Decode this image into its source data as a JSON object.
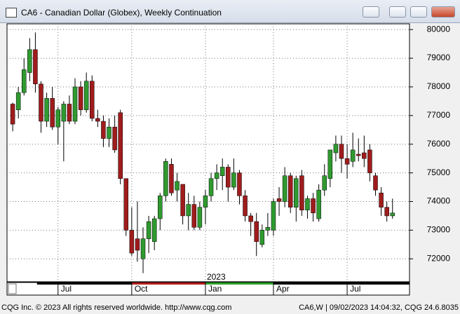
{
  "window": {
    "title": "CA6 - Canadian Dollar (Globex), Weekly Continuation"
  },
  "footer": {
    "left": "CQG Inc. © 2023 All rights reserved worldwide. http://www.cqg.com",
    "right": "CA6,W | 09/02/2023 14:04:32, CQG 24.6.8035"
  },
  "chart_data": {
    "type": "candlestick",
    "up_color": "#2f9a2f",
    "down_color": "#a01c1c",
    "ylim": [
      71200,
      80200
    ],
    "yticks": [
      72000,
      73000,
      74000,
      75000,
      76000,
      77000,
      78000,
      79000,
      80000
    ],
    "xlim": [
      -1,
      70
    ],
    "xticks": [
      {
        "value": 8,
        "label": "Jul"
      },
      {
        "value": 21,
        "label": "Oct"
      },
      {
        "value": 34,
        "label": "Jan"
      },
      {
        "value": 46,
        "label": "Apr"
      },
      {
        "value": 59,
        "label": "Jul"
      }
    ],
    "year_label": "2023",
    "grid": true,
    "ohlc": [
      [
        77400,
        77450,
        76450,
        76700
      ],
      [
        77200,
        78000,
        76900,
        77800
      ],
      [
        77800,
        79000,
        77700,
        78600
      ],
      [
        78500,
        79700,
        78200,
        79300
      ],
      [
        79300,
        79900,
        77800,
        78100
      ],
      [
        78100,
        78200,
        76400,
        76800
      ],
      [
        76800,
        77800,
        76600,
        77600
      ],
      [
        77600,
        78000,
        76500,
        76600
      ],
      [
        76600,
        77300,
        76000,
        77200
      ],
      [
        76800,
        77500,
        75400,
        77400
      ],
      [
        77400,
        77700,
        76700,
        76800
      ],
      [
        76800,
        78300,
        76700,
        78000
      ],
      [
        78000,
        78200,
        77000,
        77200
      ],
      [
        77200,
        78500,
        77100,
        78200
      ],
      [
        78200,
        78400,
        76800,
        76900
      ],
      [
        76900,
        77200,
        76600,
        76800
      ],
      [
        76800,
        77000,
        75900,
        76200
      ],
      [
        76200,
        76900,
        75900,
        76600
      ],
      [
        76600,
        77000,
        75700,
        75800
      ],
      [
        77100,
        77200,
        74600,
        74800
      ],
      [
        74800,
        74800,
        72800,
        73000
      ],
      [
        73000,
        73800,
        72100,
        72200
      ],
      [
        72700,
        74000,
        71900,
        72300
      ],
      [
        72000,
        73100,
        71500,
        72700
      ],
      [
        72700,
        73500,
        72200,
        73300
      ],
      [
        72600,
        73500,
        72300,
        73400
      ],
      [
        73400,
        74300,
        73000,
        74200
      ],
      [
        74200,
        75500,
        74000,
        75400
      ],
      [
        75300,
        75500,
        74200,
        74300
      ],
      [
        74400,
        75000,
        74000,
        74700
      ],
      [
        74600,
        74600,
        73200,
        73500
      ],
      [
        73500,
        74300,
        73000,
        73900
      ],
      [
        73900,
        74200,
        73000,
        73100
      ],
      [
        73100,
        74000,
        73000,
        73800
      ],
      [
        73800,
        74400,
        73200,
        74200
      ],
      [
        74200,
        75000,
        74000,
        74800
      ],
      [
        74800,
        75300,
        74400,
        75000
      ],
      [
        74900,
        75500,
        74400,
        75200
      ],
      [
        75200,
        75300,
        74000,
        74500
      ],
      [
        74500,
        75500,
        74400,
        75000
      ],
      [
        75000,
        75100,
        73900,
        74200
      ],
      [
        74200,
        74400,
        73300,
        73500
      ],
      [
        73500,
        73600,
        72800,
        73300
      ],
      [
        73300,
        73600,
        72100,
        72600
      ],
      [
        72500,
        73200,
        72400,
        73000
      ],
      [
        73000,
        73600,
        72800,
        73100
      ],
      [
        73000,
        74100,
        72800,
        74000
      ],
      [
        74100,
        74500,
        73500,
        74000
      ],
      [
        74000,
        75200,
        73800,
        74900
      ],
      [
        74900,
        75000,
        73600,
        73800
      ],
      [
        73800,
        74900,
        73300,
        74800
      ],
      [
        74900,
        75100,
        73500,
        73700
      ],
      [
        73700,
        74200,
        73400,
        74100
      ],
      [
        74100,
        74300,
        73300,
        73600
      ],
      [
        73400,
        74600,
        73300,
        74400
      ],
      [
        74400,
        75300,
        74200,
        74900
      ],
      [
        74800,
        75800,
        74500,
        75800
      ],
      [
        75700,
        76300,
        75400,
        76000
      ],
      [
        76000,
        76300,
        75000,
        75500
      ],
      [
        75500,
        76000,
        74800,
        75300
      ],
      [
        75400,
        76400,
        75200,
        75800
      ],
      [
        75650,
        76200,
        75400,
        75600
      ],
      [
        75700,
        76300,
        75200,
        75500
      ],
      [
        75800,
        76000,
        74700,
        75000
      ],
      [
        74900,
        75000,
        74200,
        74400
      ],
      [
        74300,
        74500,
        73500,
        73800
      ],
      [
        73800,
        74000,
        73300,
        73500
      ],
      [
        73500,
        74100,
        73400,
        73600
      ]
    ]
  }
}
